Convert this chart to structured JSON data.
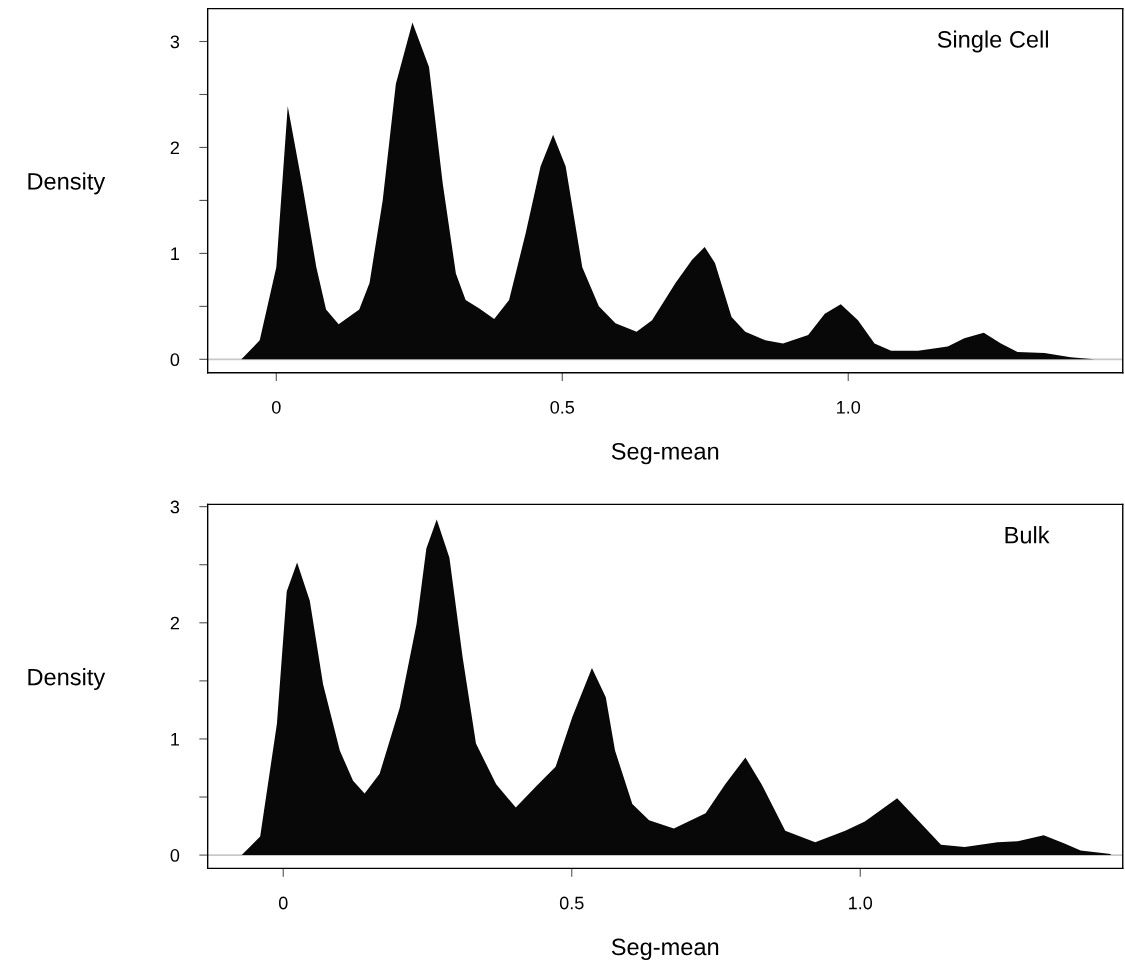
{
  "chart_data": [
    {
      "type": "area",
      "xlabel": "Seg-mean",
      "ylabel": "Density",
      "annotations": [
        "Single Cell"
      ],
      "x": [
        -0.061,
        -0.029,
        0.0,
        0.02,
        0.046,
        0.07,
        0.087,
        0.109,
        0.145,
        0.163,
        0.186,
        0.209,
        0.238,
        0.267,
        0.291,
        0.314,
        0.331,
        0.355,
        0.381,
        0.407,
        0.436,
        0.462,
        0.484,
        0.506,
        0.535,
        0.564,
        0.593,
        0.63,
        0.657,
        0.698,
        0.727,
        0.749,
        0.767,
        0.796,
        0.82,
        0.855,
        0.886,
        0.93,
        0.959,
        0.987,
        1.017,
        1.046,
        1.075,
        1.122,
        1.174,
        1.203,
        1.237,
        1.267,
        1.296,
        1.343,
        1.389,
        1.43
      ],
      "series": [
        {
          "color": "#080808",
          "values": [
            0,
            0.18,
            0.87,
            2.39,
            1.63,
            0.87,
            0.47,
            0.33,
            0.47,
            0.72,
            1.5,
            2.6,
            3.18,
            2.76,
            1.66,
            0.81,
            0.56,
            0.48,
            0.38,
            0.56,
            1.19,
            1.82,
            2.12,
            1.82,
            0.87,
            0.5,
            0.34,
            0.26,
            0.37,
            0.72,
            0.94,
            1.06,
            0.91,
            0.4,
            0.26,
            0.18,
            0.15,
            0.23,
            0.43,
            0.52,
            0.37,
            0.15,
            0.08,
            0.08,
            0.12,
            0.2,
            0.25,
            0.15,
            0.07,
            0.06,
            0.02,
            0
          ]
        }
      ],
      "xlim": [
        -0.12,
        1.48
      ],
      "ylim": [
        -0.126,
        3.31
      ],
      "xticks": [
        0,
        0.5,
        {
          "value": 1,
          "label": "1.0"
        }
      ],
      "yticks": [
        0,
        {
          "value": 0.5,
          "label": null
        },
        1,
        {
          "value": 1.5,
          "label": null
        },
        2,
        {
          "value": 2.5,
          "label": null
        },
        3
      ],
      "ref_lines": [
        {
          "axis": "y",
          "value": 0,
          "color": "#c8c8c8"
        }
      ],
      "grid": false,
      "legend": false
    },
    {
      "type": "area",
      "xlabel": "Seg-mean",
      "ylabel": "Density",
      "annotations": [
        "Bulk"
      ],
      "x": [
        -0.072,
        -0.04,
        -0.011,
        0.006,
        0.024,
        0.046,
        0.069,
        0.098,
        0.121,
        0.141,
        0.167,
        0.202,
        0.231,
        0.248,
        0.266,
        0.288,
        0.311,
        0.334,
        0.369,
        0.403,
        0.438,
        0.472,
        0.501,
        0.535,
        0.559,
        0.575,
        0.605,
        0.634,
        0.677,
        0.732,
        0.766,
        0.801,
        0.829,
        0.87,
        0.922,
        0.974,
        1.008,
        1.064,
        1.1,
        1.14,
        1.181,
        1.238,
        1.273,
        1.318,
        1.354,
        1.382,
        1.434
      ],
      "series": [
        {
          "color": "#080808",
          "values": [
            0,
            0.16,
            1.13,
            2.27,
            2.52,
            2.19,
            1.47,
            0.9,
            0.64,
            0.53,
            0.7,
            1.27,
            1.99,
            2.64,
            2.89,
            2.56,
            1.7,
            0.96,
            0.61,
            0.41,
            0.59,
            0.76,
            1.19,
            1.61,
            1.36,
            0.9,
            0.44,
            0.3,
            0.23,
            0.36,
            0.61,
            0.84,
            0.61,
            0.21,
            0.11,
            0.21,
            0.29,
            0.49,
            0.3,
            0.09,
            0.07,
            0.11,
            0.12,
            0.17,
            0.1,
            0.04,
            0.01
          ]
        }
      ],
      "xlim": [
        -0.131,
        1.455
      ],
      "ylim": [
        -0.114,
        3.02
      ],
      "xticks": [
        0,
        0.5,
        {
          "value": 1,
          "label": "1.0"
        }
      ],
      "yticks": [
        0,
        {
          "value": 0.5,
          "label": null
        },
        1,
        {
          "value": 1.5,
          "label": null
        },
        2,
        {
          "value": 2.5,
          "label": null
        },
        3
      ],
      "ref_lines": [
        {
          "axis": "y",
          "value": 0,
          "color": "#c8c8c8"
        }
      ],
      "grid": false,
      "legend": false
    }
  ]
}
